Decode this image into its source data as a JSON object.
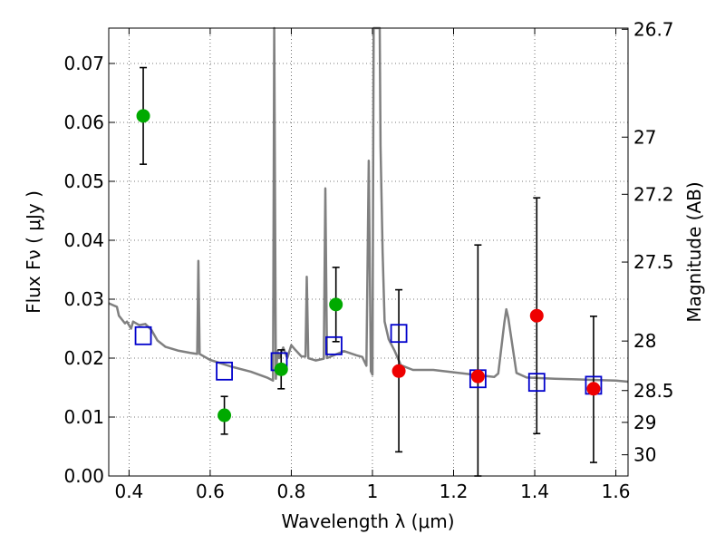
{
  "chart_data": {
    "type": "scatter",
    "xlabel": "Wavelength  λ (μm)",
    "ylabel": "Flux  Fν  ( μJy )",
    "y2label": "Magnitude (AB)",
    "xlim": [
      0.35,
      1.63
    ],
    "ylim": [
      0.0,
      0.076
    ],
    "xticks": [
      0.4,
      0.6,
      0.8,
      1.0,
      1.2,
      1.4,
      1.6
    ],
    "xtick_labels": [
      "0.4",
      "0.6",
      "0.8",
      "1",
      "1.2",
      "1.4",
      "1.6"
    ],
    "yticks": [
      0.0,
      0.01,
      0.02,
      0.03,
      0.04,
      0.05,
      0.06,
      0.07
    ],
    "ytick_labels": [
      "0.00",
      "0.01",
      "0.02",
      "0.03",
      "0.04",
      "0.05",
      "0.06",
      "0.07"
    ],
    "y2ticks": [
      {
        "label": "26.7",
        "flux": 0.0758
      },
      {
        "label": "27",
        "flux": 0.0575
      },
      {
        "label": "27.2",
        "flux": 0.0478
      },
      {
        "label": "27.5",
        "flux": 0.0363
      },
      {
        "label": "28",
        "flux": 0.0229
      },
      {
        "label": "28.5",
        "flux": 0.0145
      },
      {
        "label": "29",
        "flux": 0.0091
      },
      {
        "label": "30",
        "flux": 0.0036
      }
    ],
    "grid": true,
    "colors": {
      "green_points": "#00aa00",
      "red_points": "#ee0000",
      "model_boxes": "#0000cc",
      "spectrum": "#808080",
      "errorbar": "#000000"
    },
    "series": [
      {
        "points": [
          {
            "x": 0.435,
            "y": 0.0611,
            "yerr": [
              0.0529,
              0.0693
            ]
          },
          {
            "x": 0.635,
            "y": 0.0103,
            "yerr": [
              0.0071,
              0.0135
            ]
          },
          {
            "x": 0.775,
            "y": 0.0181,
            "yerr": [
              0.0148,
              0.0214
            ]
          },
          {
            "x": 0.91,
            "y": 0.0291,
            "yerr": [
              0.0228,
              0.0354
            ]
          }
        ]
      },
      {
        "points": [
          {
            "x": 1.065,
            "y": 0.0178,
            "yerr": [
              0.0041,
              0.0316
            ]
          },
          {
            "x": 1.26,
            "y": 0.0169,
            "yerr": [
              0.0,
              0.0392
            ]
          },
          {
            "x": 1.405,
            "y": 0.0272,
            "yerr": [
              0.0072,
              0.0472
            ]
          },
          {
            "x": 1.545,
            "y": 0.0148,
            "yerr": [
              0.0023,
              0.0271
            ]
          }
        ]
      },
      {
        "points": [
          {
            "x": 0.435,
            "y": 0.0238
          },
          {
            "x": 0.635,
            "y": 0.0178
          },
          {
            "x": 0.77,
            "y": 0.0194
          },
          {
            "x": 0.905,
            "y": 0.0221
          },
          {
            "x": 1.065,
            "y": 0.0242
          },
          {
            "x": 1.26,
            "y": 0.0165
          },
          {
            "x": 1.405,
            "y": 0.0159
          },
          {
            "x": 1.545,
            "y": 0.0154
          }
        ]
      },
      {
        "points": [
          [
            0.35,
            0.0293
          ],
          [
            0.37,
            0.0287
          ],
          [
            0.375,
            0.0272
          ],
          [
            0.39,
            0.0259
          ],
          [
            0.395,
            0.0262
          ],
          [
            0.405,
            0.025
          ],
          [
            0.41,
            0.0262
          ],
          [
            0.425,
            0.0256
          ],
          [
            0.44,
            0.0258
          ],
          [
            0.455,
            0.0248
          ],
          [
            0.47,
            0.023
          ],
          [
            0.49,
            0.0219
          ],
          [
            0.52,
            0.0213
          ],
          [
            0.55,
            0.0209
          ],
          [
            0.568,
            0.0207
          ],
          [
            0.571,
            0.0365
          ],
          [
            0.574,
            0.0207
          ],
          [
            0.6,
            0.0197
          ],
          [
            0.65,
            0.0186
          ],
          [
            0.7,
            0.0177
          ],
          [
            0.74,
            0.0167
          ],
          [
            0.755,
            0.0162
          ],
          [
            0.758,
            0.076
          ],
          [
            0.762,
            0.0165
          ],
          [
            0.766,
            0.0212
          ],
          [
            0.77,
            0.02
          ],
          [
            0.78,
            0.0218
          ],
          [
            0.79,
            0.02
          ],
          [
            0.8,
            0.0222
          ],
          [
            0.81,
            0.0214
          ],
          [
            0.825,
            0.0203
          ],
          [
            0.835,
            0.0203
          ],
          [
            0.838,
            0.0338
          ],
          [
            0.842,
            0.02
          ],
          [
            0.86,
            0.0196
          ],
          [
            0.88,
            0.0199
          ],
          [
            0.884,
            0.0488
          ],
          [
            0.888,
            0.02
          ],
          [
            0.93,
            0.0212
          ],
          [
            0.96,
            0.0205
          ],
          [
            0.975,
            0.0202
          ],
          [
            0.985,
            0.0187
          ],
          [
            0.991,
            0.0535
          ],
          [
            0.996,
            0.0178
          ],
          [
            1.0,
            0.0172
          ],
          [
            1.003,
            0.076
          ],
          [
            1.018,
            0.076
          ],
          [
            1.02,
            0.056
          ],
          [
            1.025,
            0.038
          ],
          [
            1.03,
            0.0262
          ],
          [
            1.04,
            0.0232
          ],
          [
            1.055,
            0.0212
          ],
          [
            1.07,
            0.0188
          ],
          [
            1.1,
            0.018
          ],
          [
            1.15,
            0.018
          ],
          [
            1.2,
            0.0176
          ],
          [
            1.25,
            0.0172
          ],
          [
            1.3,
            0.0168
          ],
          [
            1.31,
            0.0174
          ],
          [
            1.325,
            0.026
          ],
          [
            1.33,
            0.0283
          ],
          [
            1.335,
            0.0268
          ],
          [
            1.355,
            0.0175
          ],
          [
            1.38,
            0.0167
          ],
          [
            1.45,
            0.0165
          ],
          [
            1.5,
            0.0164
          ],
          [
            1.55,
            0.0163
          ],
          [
            1.6,
            0.0162
          ],
          [
            1.63,
            0.016
          ]
        ]
      }
    ]
  }
}
